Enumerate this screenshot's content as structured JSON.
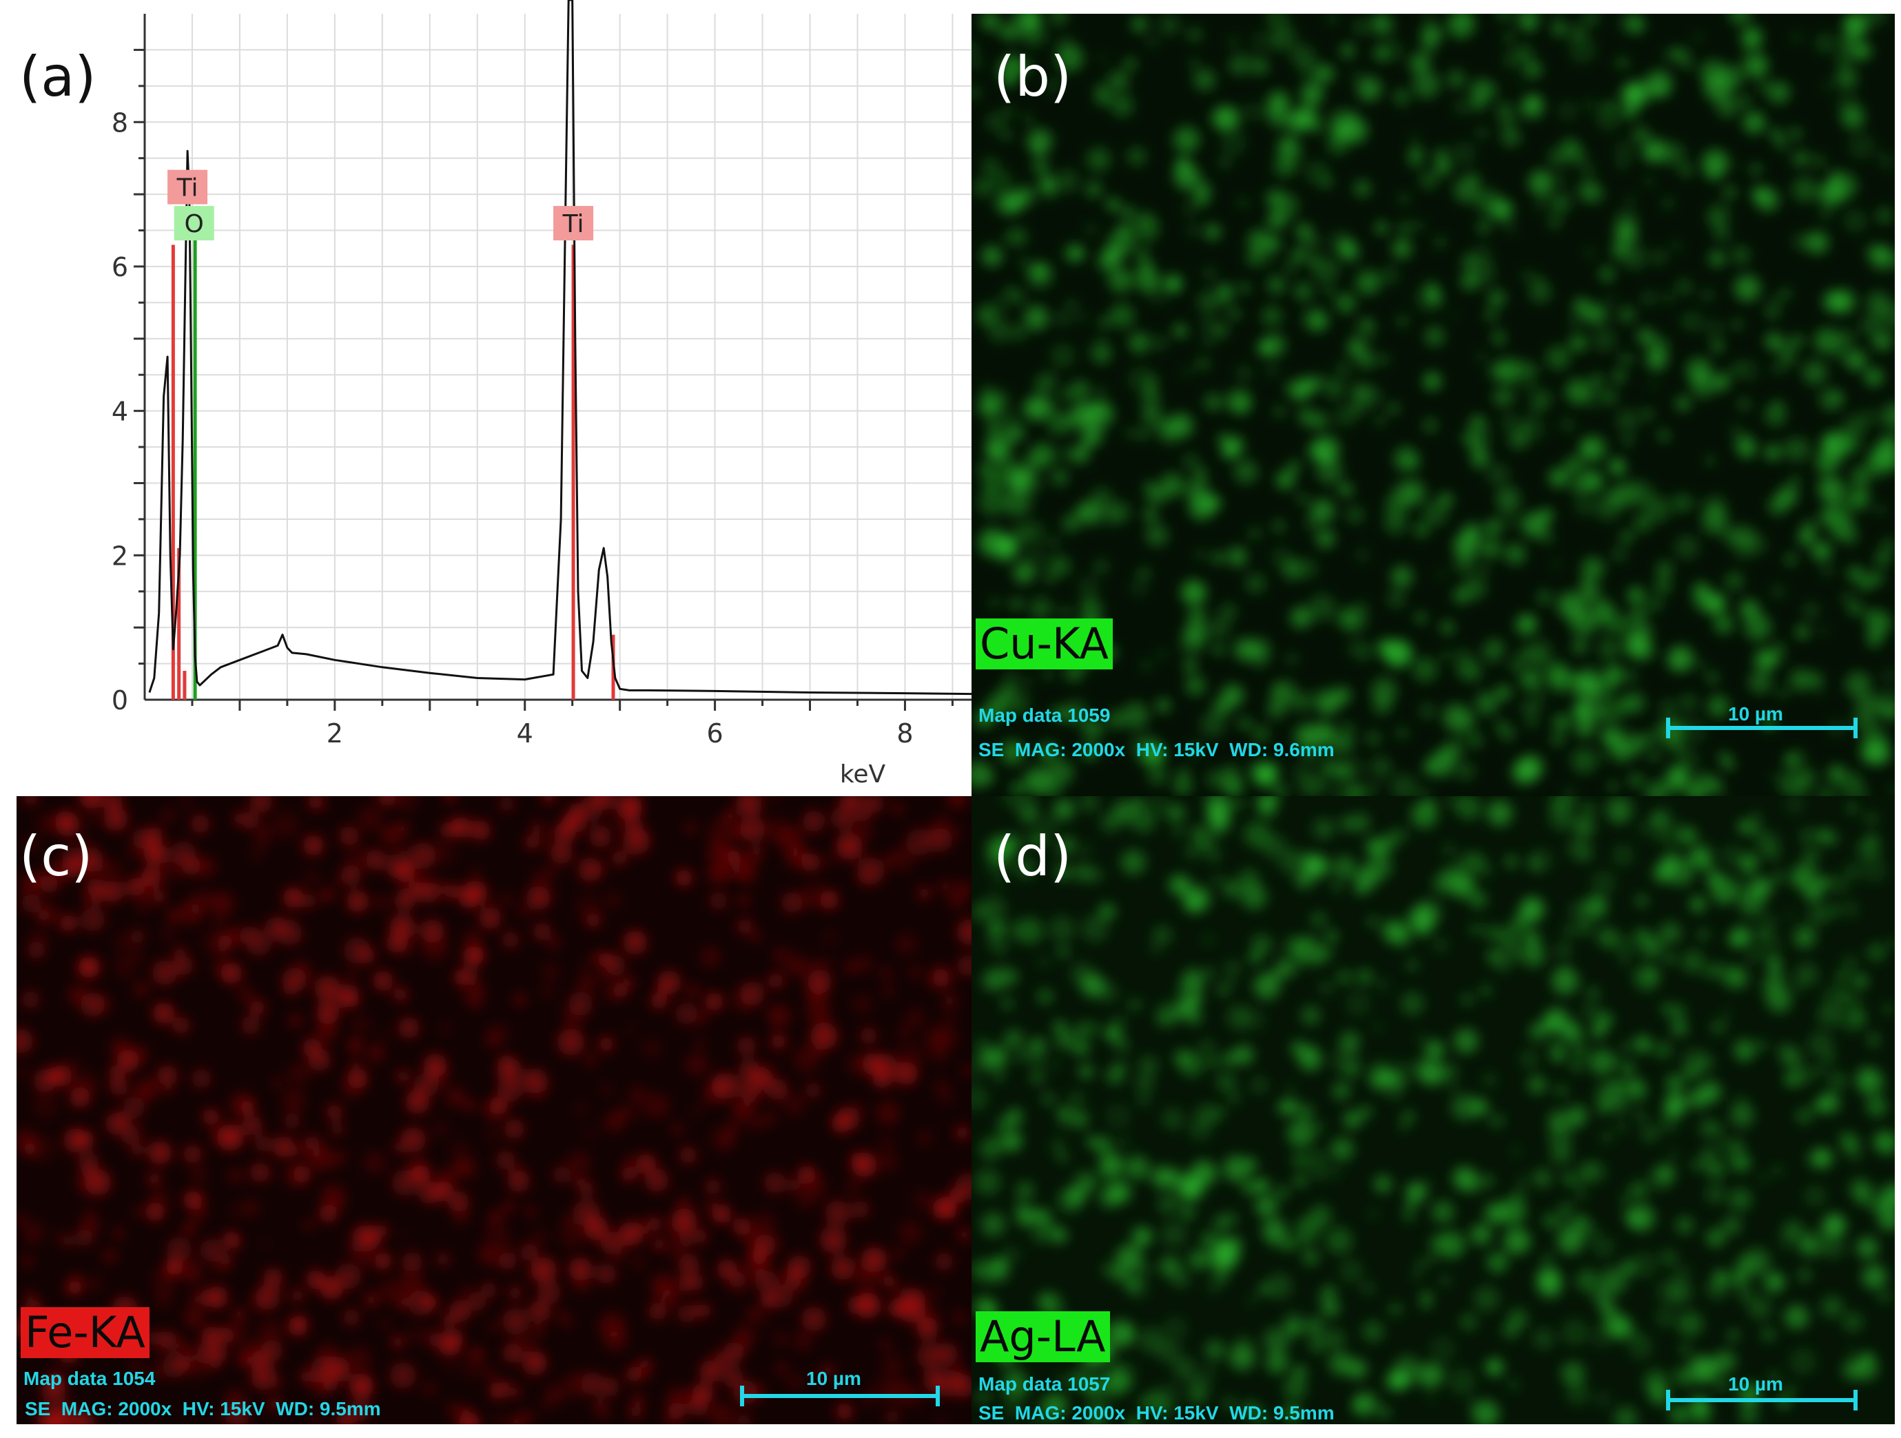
{
  "panels": {
    "a": {
      "letter": "(a)"
    },
    "b": {
      "letter": "(b)",
      "element_label": "Cu-KA",
      "map_data": "Map data 1059",
      "info": "SE  MAG: 2000x  HV: 15kV  WD: 9.6mm",
      "scale": "10 µm",
      "label_color": "#19e619",
      "map_color": "#2fc42f"
    },
    "c": {
      "letter": "(c)",
      "element_label": "Fe-KA",
      "map_data": "Map data 1054",
      "info": "SE  MAG: 2000x  HV: 15kV  WD: 9.5mm",
      "scale": "10 µm",
      "label_color": "#e21818",
      "map_color": "#c41212"
    },
    "d": {
      "letter": "(d)",
      "element_label": "Ag-LA",
      "map_data": "Map data 1057",
      "info": "SE  MAG: 2000x  HV: 15kV  WD: 9.5mm",
      "scale": "10 µm",
      "label_color": "#19e619",
      "map_color": "#2fc42f"
    }
  },
  "chart_data": {
    "type": "line",
    "xlabel": "keV",
    "ylabel": "",
    "xlim": [
      0,
      8.7
    ],
    "ylim": [
      0,
      9.5
    ],
    "x_ticks": [
      2,
      4,
      6,
      8
    ],
    "y_ticks": [
      0,
      2,
      4,
      6,
      8
    ],
    "grid": true,
    "series": [
      {
        "x": [
          0.05,
          0.1,
          0.15,
          0.2,
          0.24,
          0.27,
          0.3,
          0.33,
          0.37,
          0.4,
          0.43,
          0.45,
          0.47,
          0.49,
          0.51,
          0.53,
          0.55,
          0.58,
          0.62,
          0.7,
          0.8,
          1.0,
          1.2,
          1.4,
          1.45,
          1.5,
          1.55,
          1.7,
          2.0,
          2.5,
          3.0,
          3.5,
          4.0,
          4.3,
          4.38,
          4.43,
          4.46,
          4.5,
          4.53,
          4.56,
          4.6,
          4.66,
          4.72,
          4.78,
          4.83,
          4.87,
          4.91,
          4.95,
          5.0,
          5.1,
          5.3,
          6.0,
          7.0,
          8.0,
          8.7
        ],
        "y": [
          0.1,
          0.3,
          1.2,
          4.2,
          4.75,
          2.0,
          0.7,
          1.2,
          2.0,
          3.6,
          6.0,
          7.6,
          7.0,
          4.5,
          1.8,
          0.6,
          0.25,
          0.2,
          0.25,
          0.35,
          0.45,
          0.55,
          0.65,
          0.75,
          0.9,
          0.72,
          0.65,
          0.63,
          0.55,
          0.45,
          0.37,
          0.3,
          0.28,
          0.35,
          2.5,
          7.0,
          10,
          10,
          5.0,
          1.5,
          0.4,
          0.3,
          0.8,
          1.8,
          2.1,
          1.7,
          0.8,
          0.3,
          0.15,
          0.13,
          0.13,
          0.12,
          0.1,
          0.09,
          0.08
        ]
      }
    ],
    "annotations": [
      {
        "text": "Ti",
        "x": 0.45,
        "y": 7.1,
        "color": "#f39a9a"
      },
      {
        "text": "O",
        "x": 0.52,
        "y": 6.6,
        "color": "#a6f0a6"
      },
      {
        "text": "Ti",
        "x": 4.51,
        "y": 6.6,
        "color": "#f39a9a"
      }
    ],
    "marker_lines": [
      {
        "x": 0.3,
        "height": 6.3,
        "color": "#e23a3a"
      },
      {
        "x": 0.36,
        "height": 2.1,
        "color": "#e23a3a"
      },
      {
        "x": 0.42,
        "height": 0.4,
        "color": "#e23a3a"
      },
      {
        "x": 0.53,
        "height": 6.5,
        "color": "#1f9f1f"
      },
      {
        "x": 4.51,
        "height": 6.3,
        "color": "#e23a3a"
      },
      {
        "x": 4.93,
        "height": 0.9,
        "color": "#e23a3a"
      }
    ]
  }
}
